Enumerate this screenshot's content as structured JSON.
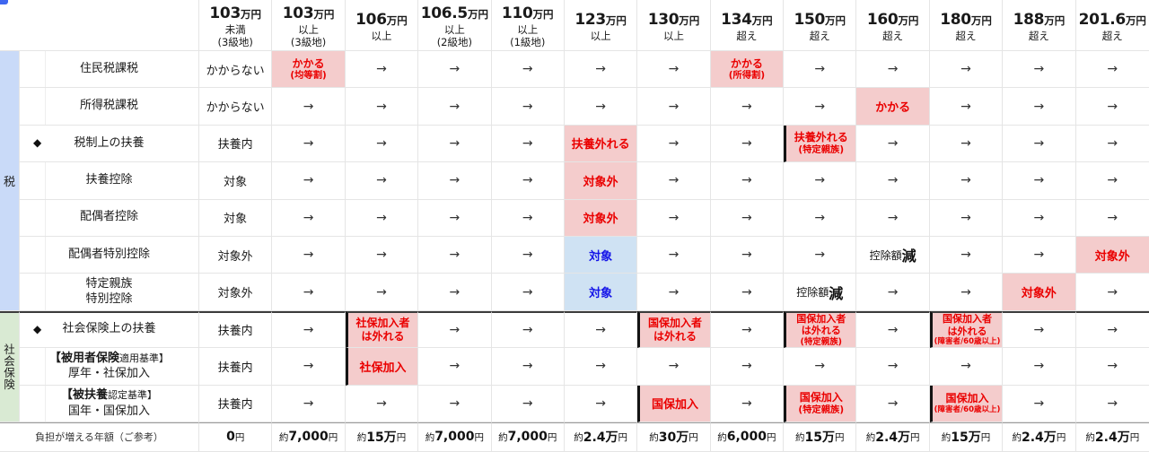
{
  "icons": {
    "arrow": "→",
    "diamond": "◆"
  },
  "colors": {
    "alert_bg": "#f4cccc",
    "alert_text": "#ea0000",
    "target_bg": "#cfe2f3",
    "target_text": "#1515e8",
    "tax_band": "#c9daf8",
    "social_band": "#d9ead3",
    "corner_marker": "#3e66f0"
  },
  "groups": [
    {
      "label": "税"
    },
    {
      "label": "社会保険"
    }
  ],
  "columns": [
    {
      "num": "103",
      "unit": "万円",
      "l2": "未満",
      "l3": "(3級地)"
    },
    {
      "num": "103",
      "unit": "万円",
      "l2": "以上",
      "l3": "(3級地)"
    },
    {
      "num": "106",
      "unit": "万円",
      "l2": "以上"
    },
    {
      "num": "106.5",
      "unit": "万円",
      "l2": "以上",
      "l3": "(2級地)"
    },
    {
      "num": "110",
      "unit": "万円",
      "l2": "以上",
      "l3": "(1級地)"
    },
    {
      "num": "123",
      "unit": "万円",
      "l2": "以上"
    },
    {
      "num": "130",
      "unit": "万円",
      "l2": "以上"
    },
    {
      "num": "134",
      "unit": "万円",
      "l2": "超え"
    },
    {
      "num": "150",
      "unit": "万円",
      "l2": "超え"
    },
    {
      "num": "160",
      "unit": "万円",
      "l2": "超え"
    },
    {
      "num": "180",
      "unit": "万円",
      "l2": "超え"
    },
    {
      "num": "188",
      "unit": "万円",
      "l2": "超え"
    },
    {
      "num": "201.6",
      "unit": "万円",
      "l2": "超え"
    }
  ],
  "rows": [
    {
      "label": "住民税課税",
      "base": "かからない",
      "cells": [
        {
          "t": "alert",
          "x": "かかる\n(均等割)"
        },
        {
          "t": "arrow"
        },
        {
          "t": "arrow"
        },
        {
          "t": "arrow"
        },
        {
          "t": "arrow"
        },
        {
          "t": "arrow"
        },
        {
          "t": "alert",
          "x": "かかる\n(所得割)"
        },
        {
          "t": "arrow"
        },
        {
          "t": "arrow"
        },
        {
          "t": "arrow"
        },
        {
          "t": "arrow"
        },
        {
          "t": "arrow"
        }
      ]
    },
    {
      "label": "所得税課税",
      "base": "かからない",
      "cells": [
        {
          "t": "arrow"
        },
        {
          "t": "arrow"
        },
        {
          "t": "arrow"
        },
        {
          "t": "arrow"
        },
        {
          "t": "arrow"
        },
        {
          "t": "arrow"
        },
        {
          "t": "arrow"
        },
        {
          "t": "arrow"
        },
        {
          "t": "alert",
          "x": "かかる"
        },
        {
          "t": "arrow"
        },
        {
          "t": "arrow"
        },
        {
          "t": "arrow"
        }
      ]
    },
    {
      "diamond": true,
      "label": "税制上の扶養",
      "base": "扶養内",
      "cells": [
        {
          "t": "arrow"
        },
        {
          "t": "arrow"
        },
        {
          "t": "arrow"
        },
        {
          "t": "arrow"
        },
        {
          "t": "alert",
          "x": "扶養外れる"
        },
        {
          "t": "arrow"
        },
        {
          "t": "arrow"
        },
        {
          "t": "alert",
          "thick": true,
          "x": "扶養外れる\n(特定親族)"
        },
        {
          "t": "arrow"
        },
        {
          "t": "arrow"
        },
        {
          "t": "arrow"
        },
        {
          "t": "arrow"
        }
      ]
    },
    {
      "label": "扶養控除",
      "base": "対象",
      "cells": [
        {
          "t": "arrow"
        },
        {
          "t": "arrow"
        },
        {
          "t": "arrow"
        },
        {
          "t": "arrow"
        },
        {
          "t": "alert",
          "x": "対象外"
        },
        {
          "t": "arrow"
        },
        {
          "t": "arrow"
        },
        {
          "t": "arrow"
        },
        {
          "t": "arrow"
        },
        {
          "t": "arrow"
        },
        {
          "t": "arrow"
        },
        {
          "t": "arrow"
        }
      ]
    },
    {
      "label": "配偶者控除",
      "base": "対象",
      "cells": [
        {
          "t": "arrow"
        },
        {
          "t": "arrow"
        },
        {
          "t": "arrow"
        },
        {
          "t": "arrow"
        },
        {
          "t": "alert",
          "x": "対象外"
        },
        {
          "t": "arrow"
        },
        {
          "t": "arrow"
        },
        {
          "t": "arrow"
        },
        {
          "t": "arrow"
        },
        {
          "t": "arrow"
        },
        {
          "t": "arrow"
        },
        {
          "t": "arrow"
        }
      ]
    },
    {
      "label": "配偶者特別控除",
      "base": "対象外",
      "cells": [
        {
          "t": "arrow"
        },
        {
          "t": "arrow"
        },
        {
          "t": "arrow"
        },
        {
          "t": "arrow"
        },
        {
          "t": "blue",
          "x": "対象"
        },
        {
          "t": "arrow"
        },
        {
          "t": "arrow"
        },
        {
          "t": "arrow"
        },
        {
          "t": "reduce",
          "pre": "控除額",
          "em": "減"
        },
        {
          "t": "arrow"
        },
        {
          "t": "arrow"
        },
        {
          "t": "alert",
          "x": "対象外"
        }
      ]
    },
    {
      "label": "特定親族\n特別控除",
      "base": "対象外",
      "cells": [
        {
          "t": "arrow"
        },
        {
          "t": "arrow"
        },
        {
          "t": "arrow"
        },
        {
          "t": "arrow"
        },
        {
          "t": "blue",
          "x": "対象"
        },
        {
          "t": "arrow"
        },
        {
          "t": "arrow"
        },
        {
          "t": "reduce",
          "pre": "控除額",
          "em": "減"
        },
        {
          "t": "arrow"
        },
        {
          "t": "arrow"
        },
        {
          "t": "alert",
          "x": "対象外"
        },
        {
          "t": "arrow"
        }
      ]
    },
    {
      "diamond": true,
      "label": "社会保険上の扶養",
      "base": "扶養内",
      "cells": [
        {
          "t": "arrow"
        },
        {
          "t": "alert",
          "thick": true,
          "x": "社保加入者\nは外れる"
        },
        {
          "t": "arrow"
        },
        {
          "t": "arrow"
        },
        {
          "t": "arrow"
        },
        {
          "t": "alert",
          "thick": true,
          "x": "国保加入者\nは外れる"
        },
        {
          "t": "arrow"
        },
        {
          "t": "alert",
          "thick": true,
          "x": "国保加入者\nは外れる\n(特定親族)"
        },
        {
          "t": "arrow"
        },
        {
          "t": "alert",
          "thick": true,
          "x": "国保加入者\nは外れる\n(障害者/60歳以上)"
        },
        {
          "t": "arrow"
        },
        {
          "t": "arrow"
        }
      ]
    },
    {
      "label_l1b": "【被用者保険",
      "label_l1r": "適用基準】",
      "label_l2": "厚年・社保加入",
      "base": "扶養内",
      "cells": [
        {
          "t": "arrow"
        },
        {
          "t": "alert",
          "thick": true,
          "x": "社保加入"
        },
        {
          "t": "arrow"
        },
        {
          "t": "arrow"
        },
        {
          "t": "arrow"
        },
        {
          "t": "arrow"
        },
        {
          "t": "arrow"
        },
        {
          "t": "arrow"
        },
        {
          "t": "arrow"
        },
        {
          "t": "arrow"
        },
        {
          "t": "arrow"
        },
        {
          "t": "arrow"
        }
      ]
    },
    {
      "label_l1b": "【被扶養",
      "label_l1r": "認定基準】",
      "label_l2": "国年・国保加入",
      "base": "扶養内",
      "cells": [
        {
          "t": "arrow"
        },
        {
          "t": "arrow"
        },
        {
          "t": "arrow"
        },
        {
          "t": "arrow"
        },
        {
          "t": "arrow"
        },
        {
          "t": "alert",
          "thick": true,
          "x": "国保加入"
        },
        {
          "t": "arrow"
        },
        {
          "t": "alert",
          "thick": true,
          "x": "国保加入\n(特定親族)"
        },
        {
          "t": "arrow"
        },
        {
          "t": "alert",
          "thick": true,
          "x": "国保加入\n(障害者/60歳以上)"
        },
        {
          "t": "arrow"
        },
        {
          "t": "arrow"
        }
      ]
    }
  ],
  "footer": {
    "label": "負担が増える年額（ご参考）",
    "values": [
      "0円",
      "約7,000円",
      "約15万円",
      "約7,000円",
      "約7,000円",
      "約2.4万円",
      "約30万円",
      "約6,000円",
      "約15万円",
      "約2.4万円",
      "約15万円",
      "約2.4万円",
      "約2.4万円"
    ]
  }
}
